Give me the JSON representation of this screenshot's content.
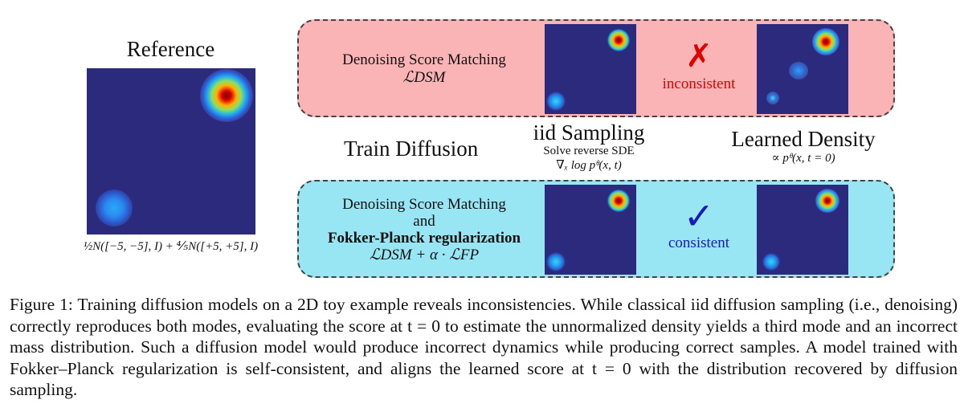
{
  "reference": {
    "title": "Reference",
    "formula": "½N([−5, −5], I) + ⅘N([+5, +5], I)"
  },
  "middle": {
    "train_label": "Train Diffusion",
    "iid_title": "iid Sampling",
    "iid_sub1": "Solve reverse SDE",
    "iid_sub2": "∇ₓ log pᶿ(x, t)",
    "learned_title": "Learned Density",
    "learned_sub": "∝ pᶿ(x, t = 0)"
  },
  "top_panel": {
    "line1": "Denoising Score Matching",
    "loss": "ℒDSM",
    "mark": "✗",
    "status": "inconsistent",
    "bg_color": "#fbb4b6",
    "status_color": "#e00000"
  },
  "bottom_panel": {
    "line1": "Denoising Score Matching",
    "line2": "and",
    "line3": "Fokker-Planck regularization",
    "loss": "ℒDSM + α · ℒFP",
    "mark": "✓",
    "status": "consistent",
    "bg_color": "#98e6f3",
    "status_color": "#1a1ab8"
  },
  "caption": "Figure 1: Training diffusion models on a 2D toy example reveals inconsistencies. While classical iid diffusion sampling (i.e., denoising) correctly reproduces both modes, evaluating the score at t = 0 to estimate the unnormalized density yields a third mode and an incorrect mass distribution. Such a diffusion model would produce incorrect dynamics while producing correct samples. A model trained with Fokker–Planck regularization is self-consistent, and aligns the learned score at t = 0 with the distribution recovered by diffusion sampling.",
  "colors": {
    "heatmap_bg": "#2c2a7d"
  }
}
